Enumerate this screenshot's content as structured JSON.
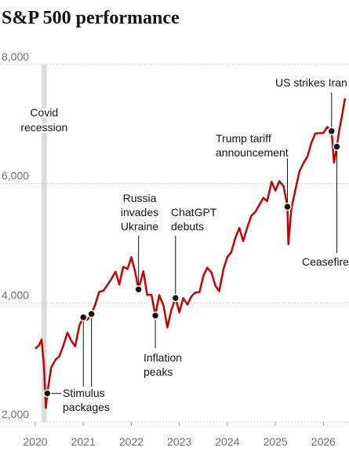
{
  "chart_data": {
    "type": "line",
    "title": "S&P 500 performance",
    "x": [
      2020.0,
      2020.08,
      2020.13,
      2020.18,
      2020.22,
      2020.25,
      2020.33,
      2020.42,
      2020.5,
      2020.58,
      2020.67,
      2020.75,
      2020.83,
      2020.92,
      2021.0,
      2021.08,
      2021.17,
      2021.25,
      2021.33,
      2021.42,
      2021.5,
      2021.58,
      2021.67,
      2021.75,
      2021.83,
      2021.92,
      2022.0,
      2022.08,
      2022.15,
      2022.25,
      2022.33,
      2022.42,
      2022.5,
      2022.58,
      2022.67,
      2022.75,
      2022.83,
      2022.92,
      2023.0,
      2023.08,
      2023.17,
      2023.25,
      2023.33,
      2023.42,
      2023.5,
      2023.58,
      2023.67,
      2023.75,
      2023.83,
      2023.92,
      2024.0,
      2024.08,
      2024.17,
      2024.25,
      2024.33,
      2024.42,
      2024.5,
      2024.58,
      2024.67,
      2024.75,
      2024.83,
      2024.92,
      2025.0,
      2025.08,
      2025.17,
      2025.25,
      2025.27,
      2025.33,
      2025.42,
      2025.5,
      2025.58,
      2025.67,
      2025.75,
      2025.83,
      2025.92,
      2026.0,
      2026.08,
      2026.17,
      2026.22,
      2026.28,
      2026.33,
      2026.4,
      2026.45
    ],
    "series": [
      {
        "name": "S&P 500",
        "color": "#c70000",
        "values": [
          3230,
          3290,
          3386,
          2950,
          2237,
          2480,
          2912,
          3044,
          3100,
          3271,
          3500,
          3363,
          3270,
          3622,
          3756,
          3714,
          3811,
          3973,
          4181,
          4204,
          4297,
          4395,
          4523,
          4307,
          4605,
          4567,
          4766,
          4516,
          4225,
          4530,
          4132,
          4132,
          3785,
          4130,
          3955,
          3586,
          3872,
          4080,
          3840,
          4077,
          3970,
          4109,
          4169,
          4180,
          4450,
          4589,
          4508,
          4288,
          4194,
          4568,
          4770,
          4846,
          5096,
          5254,
          5036,
          5278,
          5460,
          5522,
          5648,
          5762,
          5705,
          6032,
          5882,
          6040,
          5955,
          5612,
          4982,
          5570,
          5912,
          6205,
          6339,
          6460,
          6688,
          6840,
          6850,
          6850,
          6950,
          6880,
          6350,
          6620,
          6900,
          7200,
          7430
        ]
      }
    ],
    "xlim": [
      2020,
      2026.5
    ],
    "xticks": [
      2020,
      2021,
      2022,
      2023,
      2024,
      2025,
      2026
    ],
    "ylim": [
      2000,
      8000
    ],
    "yticks": [
      {
        "value": 2000,
        "label": "2,000"
      },
      {
        "value": 4000,
        "label": "4,000"
      },
      {
        "value": 6000,
        "label": "6,000"
      },
      {
        "value": 8000,
        "label": "8,000"
      }
    ],
    "grid": true,
    "shaded_band": {
      "x": [
        2020.13,
        2020.24
      ],
      "color": "#dcdcdc",
      "lines": [
        "Covid",
        "recession"
      ]
    },
    "annotations": [
      {
        "lines": [
          "Stimulus",
          "packages"
        ],
        "points": [
          {
            "x": 2020.25,
            "y": 2480
          },
          {
            "x": 2021.0,
            "y": 3756
          },
          {
            "x": 2021.17,
            "y": 3811
          }
        ]
      },
      {
        "lines": [
          "Russia",
          "invades",
          "Ukraine"
        ],
        "points": [
          {
            "x": 2022.15,
            "y": 4225
          }
        ]
      },
      {
        "lines": [
          "Inflation",
          "peaks"
        ],
        "points": [
          {
            "x": 2022.5,
            "y": 3785
          }
        ]
      },
      {
        "lines": [
          "ChatGPT",
          "debuts"
        ],
        "points": [
          {
            "x": 2022.92,
            "y": 4080
          }
        ]
      },
      {
        "lines": [
          "Trump tariff",
          "announcement"
        ],
        "points": [
          {
            "x": 2025.25,
            "y": 5612
          }
        ]
      },
      {
        "lines": [
          "US strikes Iran"
        ],
        "points": [
          {
            "x": 2026.17,
            "y": 6880
          }
        ]
      },
      {
        "lines": [
          "Ceasefire"
        ],
        "points": [
          {
            "x": 2026.28,
            "y": 6620
          }
        ]
      }
    ]
  }
}
